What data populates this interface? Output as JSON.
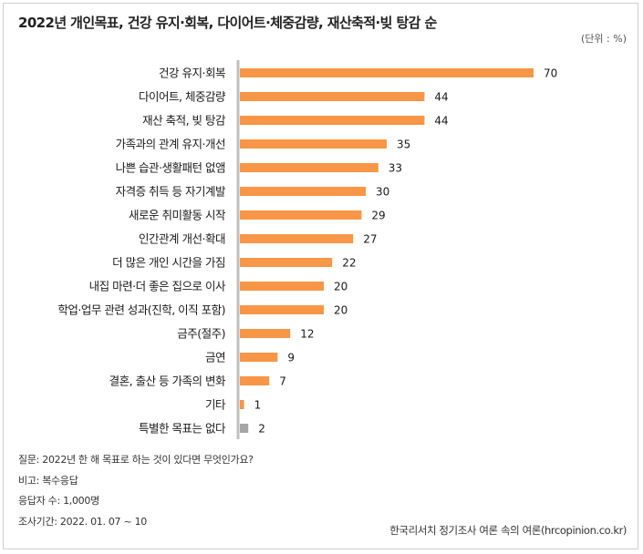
{
  "title": "2022년 개인목표, 건강 유지·회복, 다이어트·체중감량, 재산축적·빚 탕감 순",
  "unit_label": "(단위 : %)",
  "notes": [
    "질문:  2022년 한 해 목표로 하는 것이 있다면 무엇인가요?",
    "비고: 복수응답",
    "응답자 수: 1,000명",
    "조사기간: 2022. 01. 07 ~ 10"
  ],
  "source": "한국리서치 정기조사 여론 속의 여론(hrcopinion.co.kr)",
  "colors": {
    "bar": "#f79646",
    "bar_none": "#a6a6a6",
    "axis": "#bfbfbf"
  },
  "chart_data": {
    "type": "bar",
    "orientation": "horizontal",
    "title": "2022년 개인목표, 건강 유지·회복, 다이어트·체중감량, 재산축적·빚 탕감 순",
    "xlabel": "",
    "ylabel": "",
    "unit": "%",
    "xlim": [
      0,
      70
    ],
    "grid": false,
    "categories": [
      "건강 유지·회복",
      "다이어트, 체중감량",
      "재산 축적, 빚 탕감",
      "가족과의 관계 유지·개선",
      "나쁜 습관·생활패턴 없앰",
      "자격증 취득 등 자기계발",
      "새로운 취미활동 시작",
      "인간관계 개선·확대",
      "더 많은 개인 시간을 가짐",
      "내집 마련·더 좋은 집으로 이사",
      "학업·업무 관련 성과(진학, 이직 포함)",
      "금주(절주)",
      "금연",
      "결혼, 출산 등 가족의 변화",
      "기타",
      "특별한 목표는 없다"
    ],
    "values": [
      70,
      44,
      44,
      35,
      33,
      30,
      29,
      27,
      22,
      20,
      20,
      12,
      9,
      7,
      1,
      2
    ],
    "highlight_none_index": 15
  }
}
